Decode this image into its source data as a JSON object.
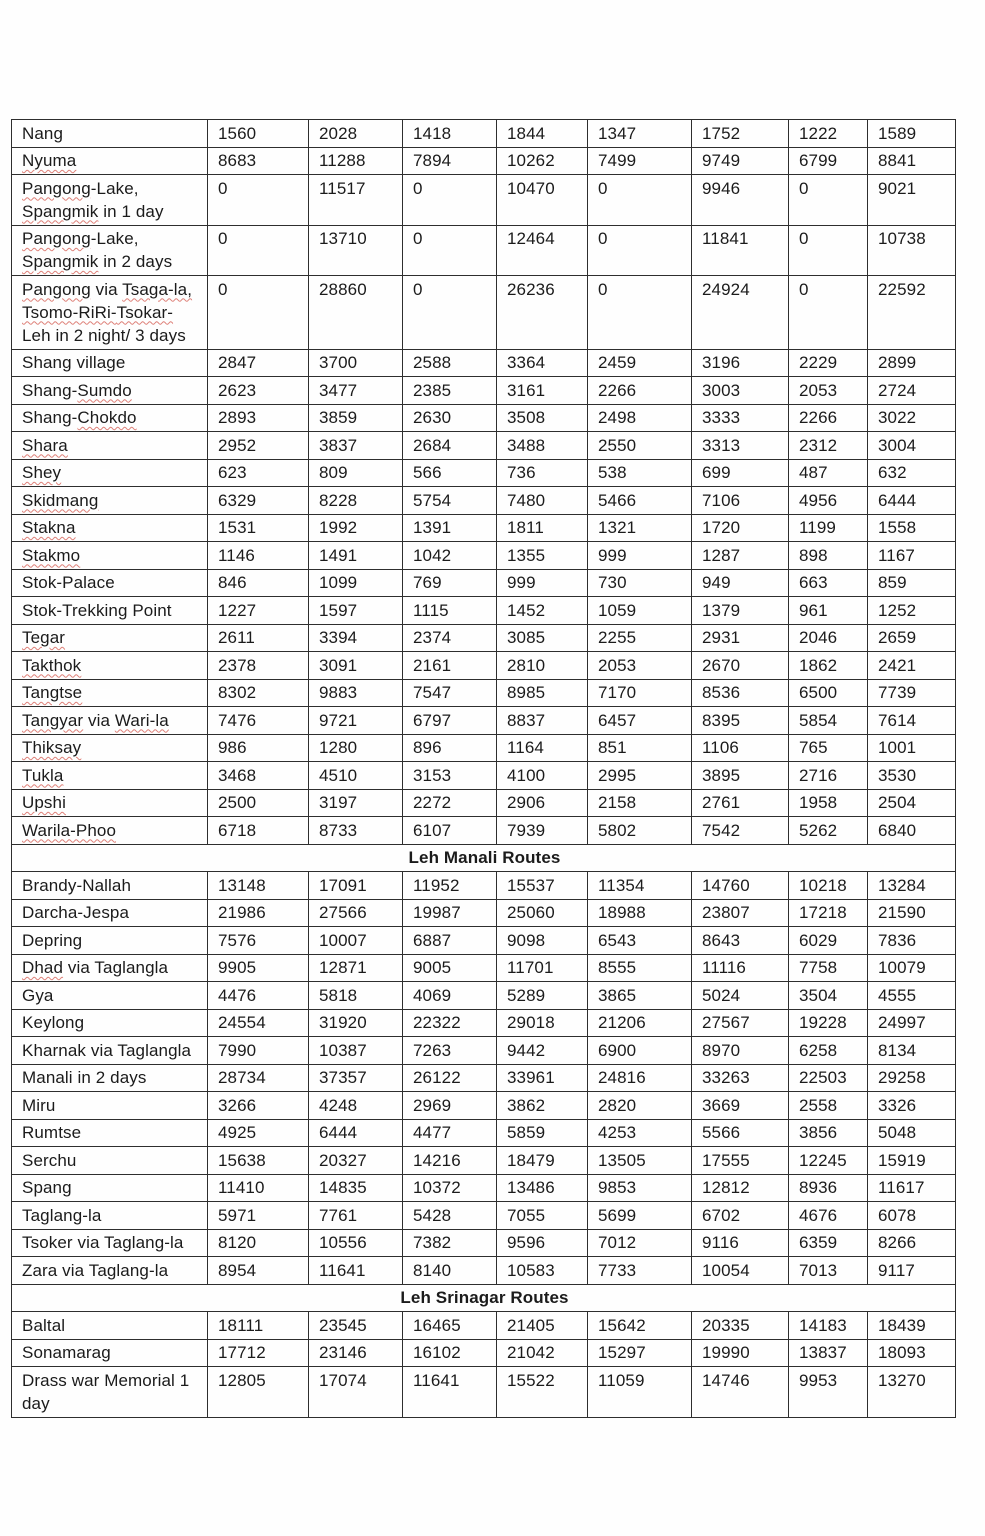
{
  "document": {
    "type": "taxi-fare-rate-table",
    "colors": {
      "text": "#1b1b1b",
      "border": "#2e2e2e",
      "spellcheck_squiggle": "#d66056",
      "background": "#fefefe"
    },
    "sections": [
      {
        "header": null,
        "rows": [
          {
            "name": "Nang",
            "values": [
              1560,
              2028,
              1418,
              1844,
              1347,
              1752,
              1222,
              1589
            ],
            "wavy": []
          },
          {
            "name": "Nyuma",
            "values": [
              8683,
              11288,
              7894,
              10262,
              7499,
              9749,
              6799,
              8841
            ],
            "wavy": [
              "Nyuma"
            ]
          },
          {
            "name": "Pangong-Lake, Spangmik in 1 day",
            "values": [
              0,
              11517,
              0,
              10470,
              0,
              9946,
              0,
              9021
            ],
            "wavy": [
              "Pangong",
              "Spangmik"
            ]
          },
          {
            "name": "Pangong-Lake, Spangmik in 2 days",
            "values": [
              0,
              13710,
              0,
              12464,
              0,
              11841,
              0,
              10738
            ],
            "wavy": [
              "Pangong",
              "Spangmik"
            ]
          },
          {
            "name": "Pangong via Tsaga-la, Tsomo-RiRi-Tsokar- Leh in 2 night/ 3 days",
            "values": [
              0,
              28860,
              0,
              26236,
              0,
              24924,
              0,
              22592
            ],
            "wavy": [
              "Pangong",
              "Tsaga-la,",
              "Tsomo-RiRi-",
              "Tsokar-"
            ]
          },
          {
            "name": "Shang village",
            "values": [
              2847,
              3700,
              2588,
              3364,
              2459,
              3196,
              2229,
              2899
            ],
            "wavy": []
          },
          {
            "name": "Shang-Sumdo",
            "values": [
              2623,
              3477,
              2385,
              3161,
              2266,
              3003,
              2053,
              2724
            ],
            "wavy": [
              "Sumdo"
            ]
          },
          {
            "name": "Shang-Chokdo",
            "values": [
              2893,
              3859,
              2630,
              3508,
              2498,
              3333,
              2266,
              3022
            ],
            "wavy": [
              "Chokdo"
            ]
          },
          {
            "name": "Shara",
            "values": [
              2952,
              3837,
              2684,
              3488,
              2550,
              3313,
              2312,
              3004
            ],
            "wavy": [
              "Shara"
            ]
          },
          {
            "name": "Shey",
            "values": [
              623,
              809,
              566,
              736,
              538,
              699,
              487,
              632
            ],
            "wavy": [
              "Shey"
            ]
          },
          {
            "name": "Skidmang",
            "values": [
              6329,
              8228,
              5754,
              7480,
              5466,
              7106,
              4956,
              6444
            ],
            "wavy": [
              "Skidmang"
            ]
          },
          {
            "name": "Stakna",
            "values": [
              1531,
              1992,
              1391,
              1811,
              1321,
              1720,
              1199,
              1558
            ],
            "wavy": [
              "Stakna"
            ]
          },
          {
            "name": "Stakmo",
            "values": [
              1146,
              1491,
              1042,
              1355,
              999,
              1287,
              898,
              1167
            ],
            "wavy": [
              "Stakmo"
            ]
          },
          {
            "name": "Stok-Palace",
            "values": [
              846,
              1099,
              769,
              999,
              730,
              949,
              663,
              859
            ],
            "wavy": []
          },
          {
            "name": "Stok-Trekking Point",
            "values": [
              1227,
              1597,
              1115,
              1452,
              1059,
              1379,
              961,
              1252
            ],
            "wavy": []
          },
          {
            "name": "Tegar",
            "values": [
              2611,
              3394,
              2374,
              3085,
              2255,
              2931,
              2046,
              2659
            ],
            "wavy": [
              "Tegar"
            ]
          },
          {
            "name": "Takthok",
            "values": [
              2378,
              3091,
              2161,
              2810,
              2053,
              2670,
              1862,
              2421
            ],
            "wavy": [
              "Takthok"
            ]
          },
          {
            "name": "Tangtse",
            "values": [
              8302,
              9883,
              7547,
              8985,
              7170,
              8536,
              6500,
              7739
            ],
            "wavy": [
              "Tangtse"
            ]
          },
          {
            "name": "Tangyar via Wari-la",
            "values": [
              7476,
              9721,
              6797,
              8837,
              6457,
              8395,
              5854,
              7614
            ],
            "wavy": [
              "Tangyar",
              "Wari-la"
            ]
          },
          {
            "name": "Thiksay",
            "values": [
              986,
              1280,
              896,
              1164,
              851,
              1106,
              765,
              1001
            ],
            "wavy": [
              "Thiksay"
            ]
          },
          {
            "name": "Tukla",
            "values": [
              3468,
              4510,
              3153,
              4100,
              2995,
              3895,
              2716,
              3530
            ],
            "wavy": [
              "Tukla"
            ]
          },
          {
            "name": "Upshi",
            "values": [
              2500,
              3197,
              2272,
              2906,
              2158,
              2761,
              1958,
              2504
            ],
            "wavy": [
              "Upshi"
            ]
          },
          {
            "name": "Warila-Phoo",
            "values": [
              6718,
              8733,
              6107,
              7939,
              5802,
              7542,
              5262,
              6840
            ],
            "wavy": [
              "Warila-Phoo"
            ]
          }
        ]
      },
      {
        "header": "Leh Manali Routes",
        "rows": [
          {
            "name": "Brandy-Nallah",
            "values": [
              13148,
              17091,
              11952,
              15537,
              11354,
              14760,
              10218,
              13284
            ],
            "wavy": []
          },
          {
            "name": "Darcha-Jespa",
            "values": [
              21986,
              27566,
              19987,
              25060,
              18988,
              23807,
              17218,
              21590
            ],
            "wavy": []
          },
          {
            "name": "Depring",
            "values": [
              7576,
              10007,
              6887,
              9098,
              6543,
              8643,
              6029,
              7836
            ],
            "wavy": []
          },
          {
            "name": "Dhad via Taglangla",
            "values": [
              9905,
              12871,
              9005,
              11701,
              8555,
              11116,
              7758,
              10079
            ],
            "wavy": [
              "Dhad"
            ]
          },
          {
            "name": "Gya",
            "values": [
              4476,
              5818,
              4069,
              5289,
              3865,
              5024,
              3504,
              4555
            ],
            "wavy": []
          },
          {
            "name": "Keylong",
            "values": [
              24554,
              31920,
              22322,
              29018,
              21206,
              27567,
              19228,
              24997
            ],
            "wavy": []
          },
          {
            "name": "Kharnak via Taglangla",
            "values": [
              7990,
              10387,
              7263,
              9442,
              6900,
              8970,
              6258,
              8134
            ],
            "wavy": []
          },
          {
            "name": "Manali in 2 days",
            "values": [
              28734,
              37357,
              26122,
              33961,
              24816,
              33263,
              22503,
              29258
            ],
            "wavy": []
          },
          {
            "name": "Miru",
            "values": [
              3266,
              4248,
              2969,
              3862,
              2820,
              3669,
              2558,
              3326
            ],
            "wavy": []
          },
          {
            "name": "Rumtse",
            "values": [
              4925,
              6444,
              4477,
              5859,
              4253,
              5566,
              3856,
              5048
            ],
            "wavy": []
          },
          {
            "name": "Serchu",
            "values": [
              15638,
              20327,
              14216,
              18479,
              13505,
              17555,
              12245,
              15919
            ],
            "wavy": []
          },
          {
            "name": "Spang",
            "values": [
              11410,
              14835,
              10372,
              13486,
              9853,
              12812,
              8936,
              11617
            ],
            "wavy": []
          },
          {
            "name": "Taglang-la",
            "values": [
              5971,
              7761,
              5428,
              7055,
              5699,
              6702,
              4676,
              6078
            ],
            "wavy": []
          },
          {
            "name": "Tsoker via Taglang-la",
            "values": [
              8120,
              10556,
              7382,
              9596,
              7012,
              9116,
              6359,
              8266
            ],
            "wavy": []
          },
          {
            "name": "Zara via Taglang-la",
            "values": [
              8954,
              11641,
              8140,
              10583,
              7733,
              10054,
              7013,
              9117
            ],
            "wavy": []
          }
        ]
      },
      {
        "header": "Leh Srinagar Routes",
        "rows": [
          {
            "name": "Baltal",
            "values": [
              18111,
              23545,
              16465,
              21405,
              15642,
              20335,
              14183,
              18439
            ],
            "wavy": []
          },
          {
            "name": "Sonamarag",
            "values": [
              17712,
              23146,
              16102,
              21042,
              15297,
              19990,
              13837,
              18093
            ],
            "wavy": []
          },
          {
            "name": "Drass war Memorial 1 day",
            "values": [
              12805,
              17074,
              11641,
              15522,
              11059,
              14746,
              9953,
              13270
            ],
            "wavy": []
          }
        ]
      }
    ]
  }
}
